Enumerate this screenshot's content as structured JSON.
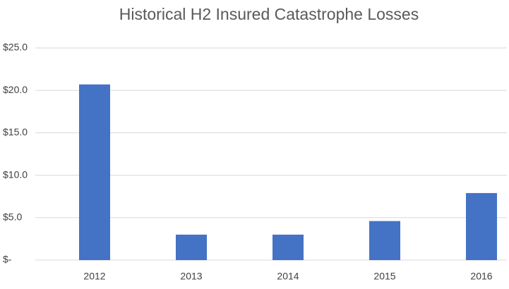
{
  "chart_data": {
    "type": "bar",
    "title": "Historical H2 Insured Catastrophe Losses",
    "categories": [
      "2012",
      "2013",
      "2014",
      "2015",
      "2016"
    ],
    "values": [
      20.7,
      3.0,
      3.0,
      4.6,
      7.9
    ],
    "color": "#4472c4",
    "ylim": [
      0,
      25
    ],
    "yticks": [
      {
        "value": 0,
        "label": "$-"
      },
      {
        "value": 5,
        "label": "$5.0"
      },
      {
        "value": 10,
        "label": "$10.0"
      },
      {
        "value": 15,
        "label": "$15.0"
      },
      {
        "value": 20,
        "label": "$20.0"
      },
      {
        "value": 25,
        "label": "$25.0"
      }
    ],
    "grid": true
  }
}
